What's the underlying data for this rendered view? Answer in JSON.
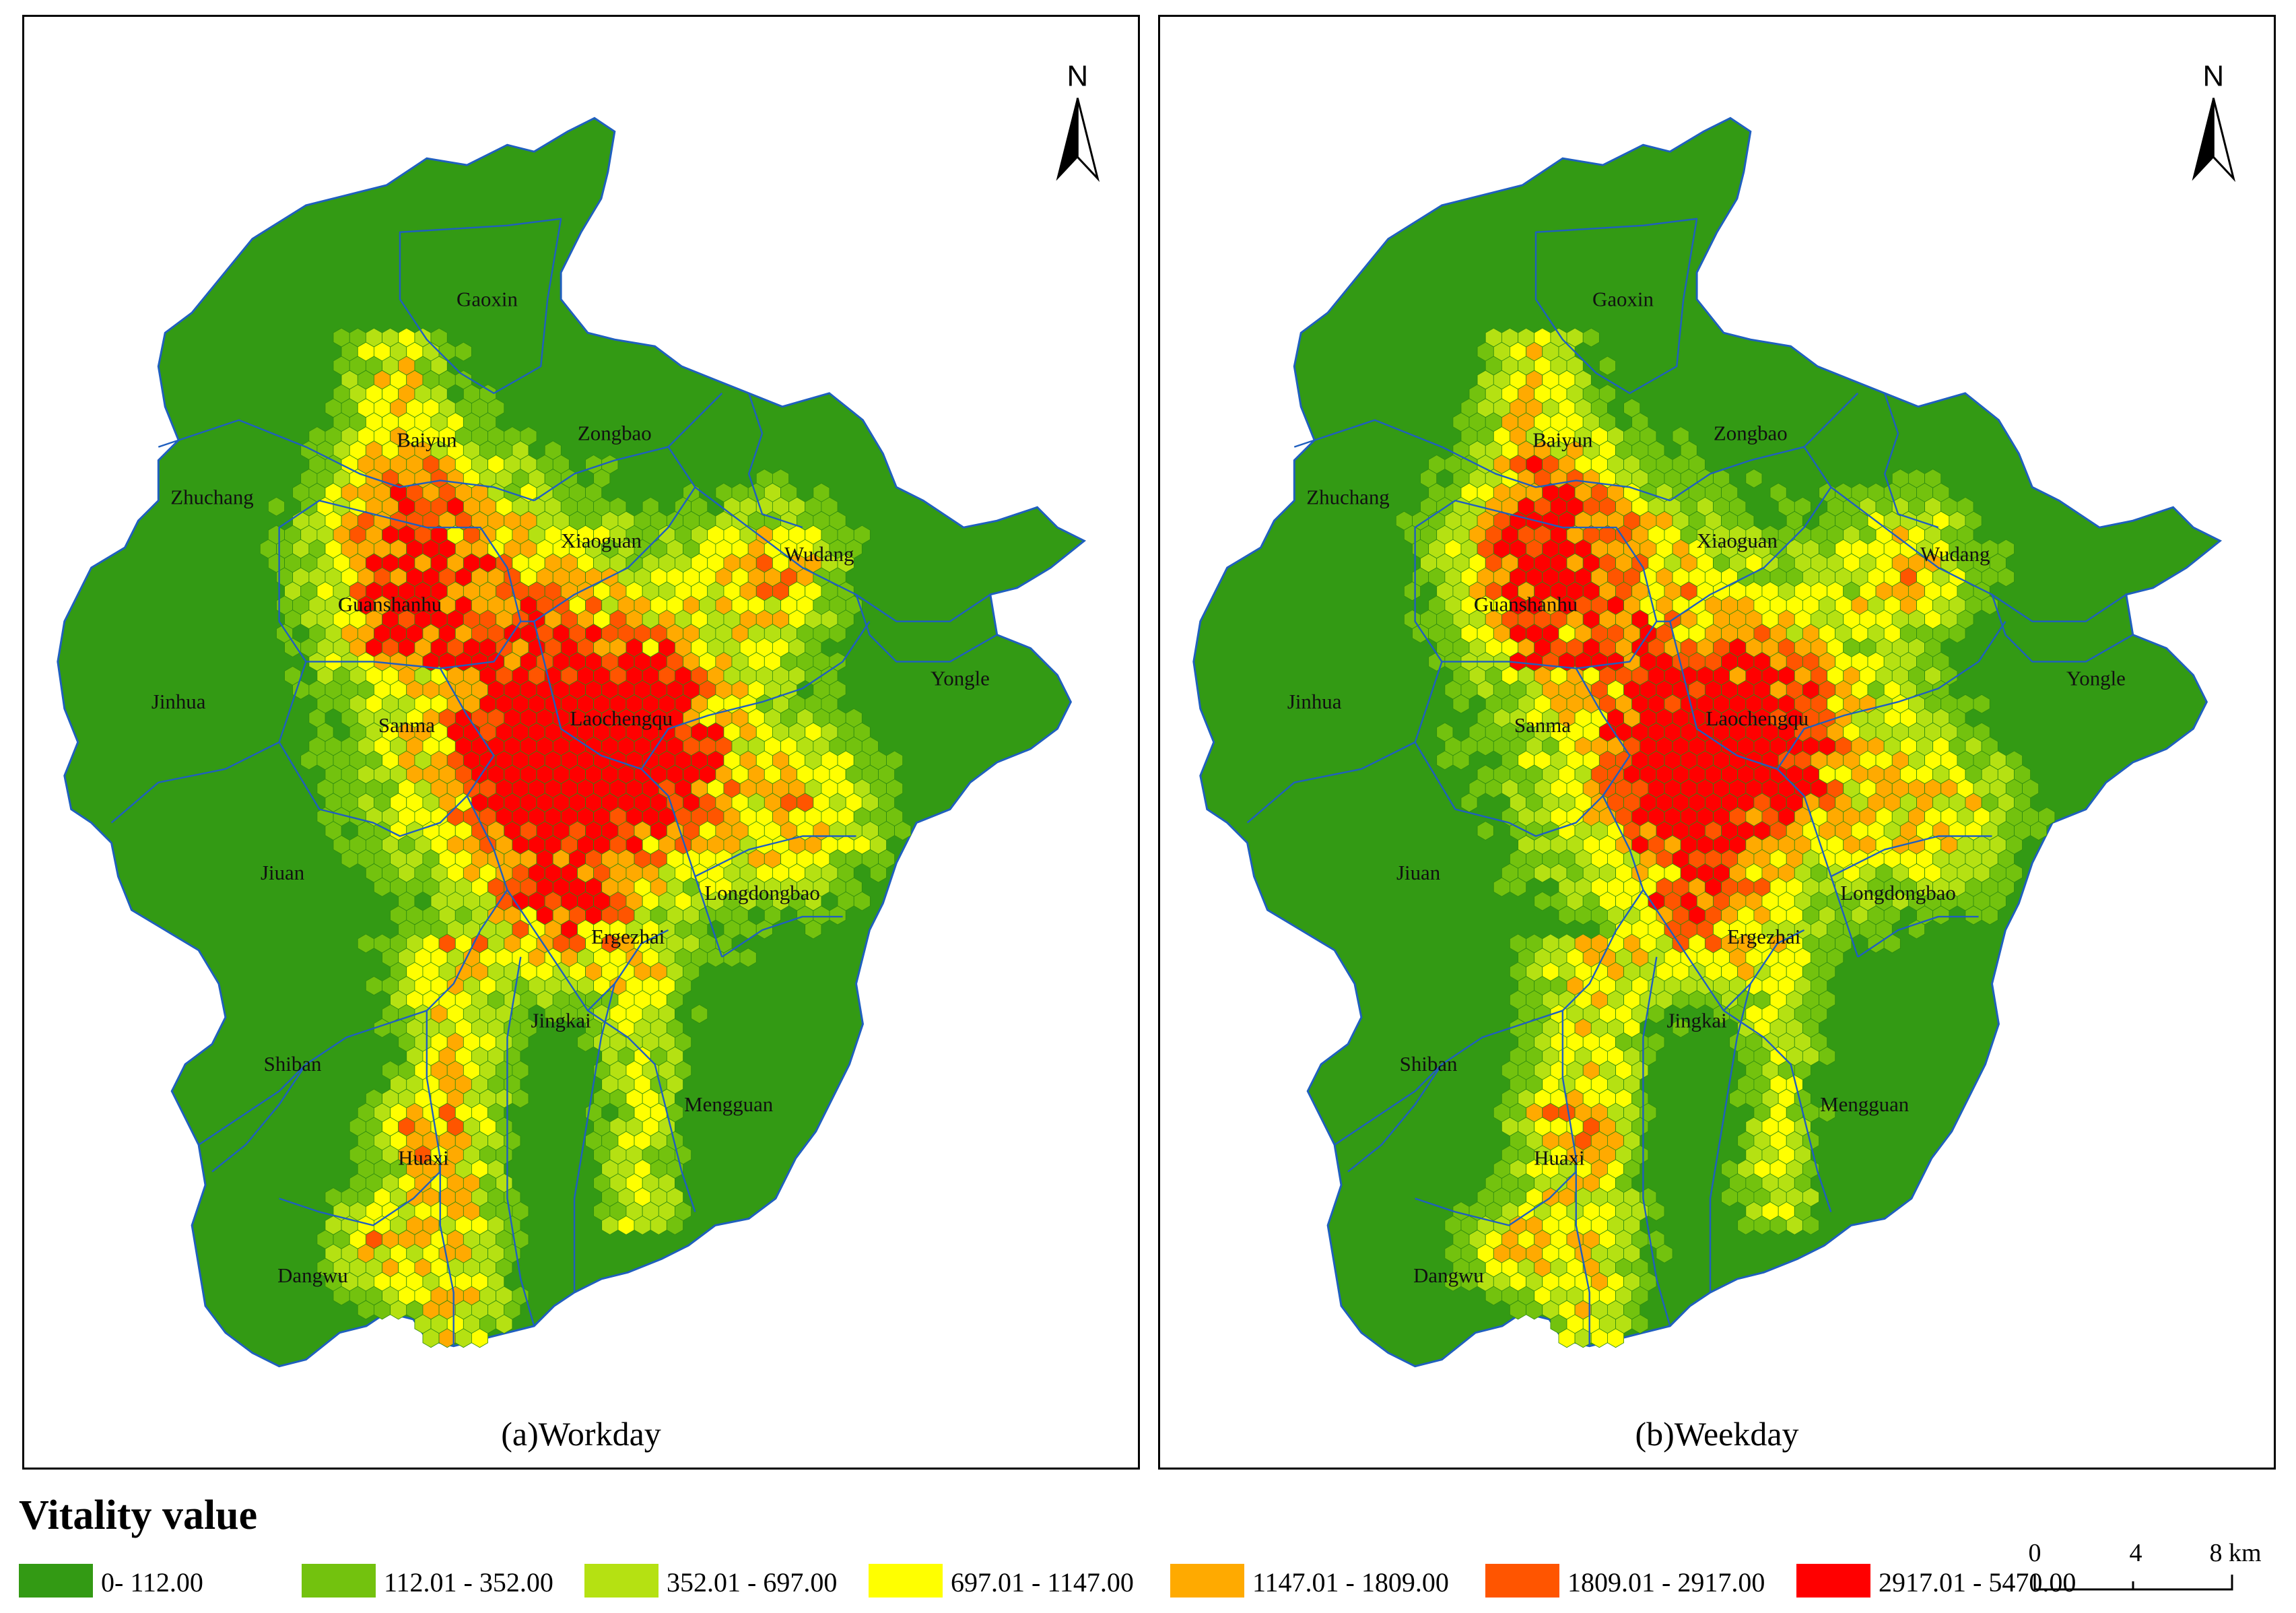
{
  "legend": {
    "title": "Vitality value",
    "classes": [
      {
        "label": "0- 112.00",
        "color": "#339a14"
      },
      {
        "label": "112.01 - 352.00",
        "color": "#73c20e"
      },
      {
        "label": "352.01 - 697.00",
        "color": "#b5e112"
      },
      {
        "label": "697.01 - 1147.00",
        "color": "#ffff00"
      },
      {
        "label": "1147.01 - 1809.00",
        "color": "#ffaa00"
      },
      {
        "label": "1809.01 - 2917.00",
        "color": "#ff5500"
      },
      {
        "label": "2917.01 - 5470.00",
        "color": "#ff0000"
      }
    ]
  },
  "scale_bar": {
    "ticks": [
      "0",
      "4",
      "8 km"
    ]
  },
  "north_arrow": {
    "label": "N",
    "icon": "north-arrow-icon"
  },
  "panels": [
    {
      "id": "a",
      "caption": "(a)Workday"
    },
    {
      "id": "b",
      "caption": "(b)Weekday"
    }
  ],
  "districts": [
    "Gaoxin",
    "Baiyun",
    "Zongbao",
    "Zhuchang",
    "Xiaoguan",
    "Wudang",
    "Guanshanhu",
    "Yongle",
    "Jinhua",
    "Sanma",
    "Laochengqu",
    "Jiuan",
    "Longdongbao",
    "Ergezhai",
    "Shiban",
    "Jingkai",
    "Mengguan",
    "Huaxi",
    "Dangwu"
  ],
  "colors": {
    "base": "#339a14",
    "boundary": "#1f5fbf",
    "hex_edge": "#2d8a10"
  }
}
